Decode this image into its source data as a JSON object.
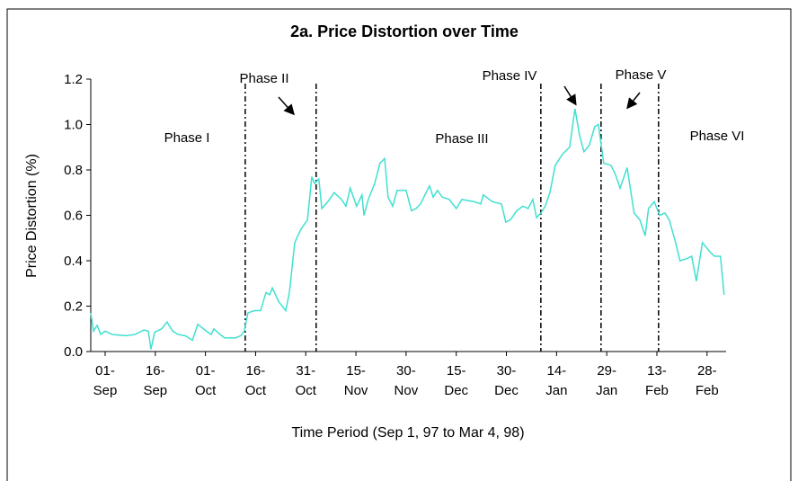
{
  "chart_data": {
    "type": "line",
    "title": "2a. Price Distortion over Time",
    "x_label": "Time Period (Sep 1, 97 to Mar 4, 98)",
    "y_label": "Price Distortion (%)",
    "xlim": [
      -4.3,
      185.7
    ],
    "xticks": [
      {
        "value": 0,
        "label": "01-\nSep"
      },
      {
        "value": 15,
        "label": "16-\nSep"
      },
      {
        "value": 30,
        "label": "01-\nOct"
      },
      {
        "value": 45,
        "label": "16-\nOct"
      },
      {
        "value": 60,
        "label": "31-\nOct"
      },
      {
        "value": 75,
        "label": "15-\nNov"
      },
      {
        "value": 90,
        "label": "30-\nNov"
      },
      {
        "value": 105,
        "label": "15-\nDec"
      },
      {
        "value": 120,
        "label": "30-\nDec"
      },
      {
        "value": 135,
        "label": "14-\nJan"
      },
      {
        "value": 150,
        "label": "29-\nJan"
      },
      {
        "value": 165,
        "label": "13-\nFeb"
      },
      {
        "value": 180,
        "label": "28-\nFeb"
      }
    ],
    "ylim": [
      0,
      1.2
    ],
    "yticks": [
      {
        "value": 0,
        "label": "0.0"
      },
      0.2,
      0.4,
      0.6,
      0.8,
      {
        "value": 1,
        "label": "1.0"
      },
      1.2
    ],
    "phase_lines": [
      41.9,
      63.1,
      130.3,
      148.3,
      165.5
    ],
    "annotations": [
      "Phase I",
      "Phase II",
      "Phase III",
      "Phase IV",
      "Phase V",
      "Phase VI"
    ],
    "x": [
      -4.3,
      -3.5,
      -2.4,
      -1.3,
      0,
      2.1,
      6.2,
      8.9,
      11.6,
      12.9,
      13.7,
      14.8,
      16.9,
      18.5,
      20.2,
      21.8,
      23.9,
      26.1,
      27.7,
      29.8,
      31.7,
      32.5,
      34.4,
      35.7,
      39.0,
      40.6,
      41.6,
      42.7,
      44.6,
      46.5,
      48.1,
      49.2,
      50.0,
      51.9,
      54.0,
      55.1,
      56.7,
      58.6,
      60.5,
      61.8,
      62.6,
      63.9,
      64.8,
      66.6,
      68.5,
      70.7,
      72.0,
      73.3,
      75.2,
      76.8,
      77.4,
      78.7,
      80.6,
      82.2,
      83.6,
      84.6,
      86.0,
      87.3,
      90.0,
      91.6,
      93.0,
      94.3,
      97.0,
      98.1,
      99.4,
      100.8,
      102.9,
      105.0,
      106.7,
      110.4,
      112.3,
      113.1,
      115.8,
      118.5,
      119.8,
      121.2,
      123.1,
      124.9,
      126.5,
      127.9,
      129.0,
      130.3,
      131.6,
      133.0,
      134.6,
      136.8,
      138.9,
      140.5,
      141.9,
      143.2,
      144.8,
      146.4,
      147.5,
      149.1,
      151.3,
      152.6,
      154.0,
      156.1,
      158.2,
      159.9,
      161.5,
      162.5,
      164.2,
      165.8,
      167.4,
      168.7,
      170.6,
      171.9,
      174.1,
      175.4,
      176.8,
      178.6,
      180.8,
      182.2,
      184.0,
      185.1
    ],
    "series": [
      {
        "name": "Price Distortion",
        "color": "#40e0d0",
        "values": [
          0.17,
          0.09,
          0.115,
          0.075,
          0.09,
          0.075,
          0.07,
          0.075,
          0.095,
          0.09,
          0.01,
          0.085,
          0.1,
          0.13,
          0.09,
          0.075,
          0.07,
          0.05,
          0.12,
          0.095,
          0.075,
          0.1,
          0.075,
          0.06,
          0.06,
          0.07,
          0.09,
          0.17,
          0.18,
          0.18,
          0.26,
          0.25,
          0.28,
          0.22,
          0.18,
          0.26,
          0.48,
          0.54,
          0.58,
          0.77,
          0.74,
          0.76,
          0.63,
          0.66,
          0.7,
          0.67,
          0.64,
          0.72,
          0.64,
          0.69,
          0.6,
          0.67,
          0.74,
          0.83,
          0.85,
          0.68,
          0.64,
          0.71,
          0.71,
          0.62,
          0.63,
          0.65,
          0.73,
          0.68,
          0.71,
          0.68,
          0.67,
          0.63,
          0.67,
          0.66,
          0.65,
          0.69,
          0.66,
          0.65,
          0.57,
          0.58,
          0.62,
          0.64,
          0.63,
          0.67,
          0.59,
          0.61,
          0.64,
          0.7,
          0.82,
          0.87,
          0.9,
          1.07,
          0.95,
          0.88,
          0.91,
          0.99,
          1.0,
          0.83,
          0.82,
          0.78,
          0.72,
          0.81,
          0.61,
          0.58,
          0.51,
          0.63,
          0.66,
          0.6,
          0.61,
          0.58,
          0.48,
          0.4,
          0.41,
          0.42,
          0.31,
          0.48,
          0.44,
          0.42,
          0.42,
          0.25
        ]
      }
    ]
  }
}
